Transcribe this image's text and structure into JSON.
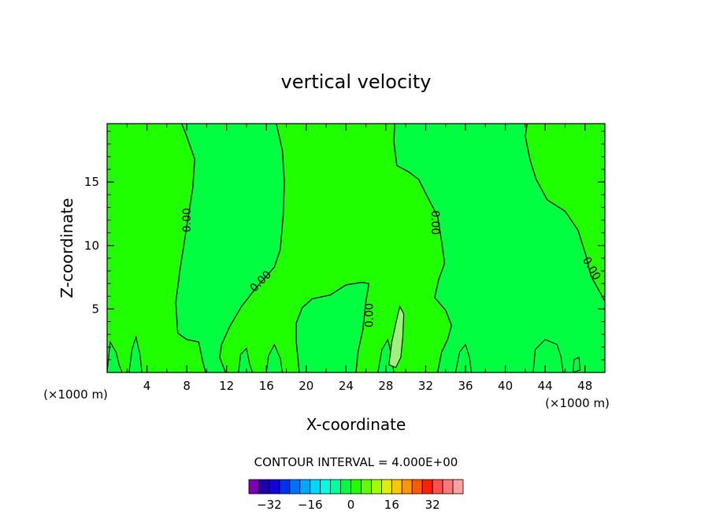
{
  "chart_data": {
    "type": "heatmap",
    "title": "vertical velocity",
    "xlabel": "X-coordinate",
    "ylabel": "Z-coordinate",
    "x_unit_left": "(×1000 m)",
    "x_unit_right": "(×1000 m)",
    "xlim": [
      0,
      50
    ],
    "ylim": [
      0,
      19.6
    ],
    "x_ticks": [
      4,
      8,
      12,
      16,
      20,
      24,
      28,
      32,
      36,
      40,
      44,
      48
    ],
    "y_ticks": [
      5,
      10,
      15
    ],
    "contour_interval_text": "CONTOUR INTERVAL = 4.000E+00",
    "contour_label": "0.00",
    "colorbar": {
      "ticks": [
        -32,
        -16,
        0,
        16,
        32
      ],
      "colors": [
        "#7a00b0",
        "#1e00a8",
        "#1400d8",
        "#0030f0",
        "#0070ff",
        "#00a8ff",
        "#00d8ff",
        "#00ffe0",
        "#00ffa0",
        "#00ff40",
        "#20ff00",
        "#60ff00",
        "#a0ff00",
        "#e0f000",
        "#ffc800",
        "#ff9600",
        "#ff5a00",
        "#ff2000",
        "#ff5050",
        "#ff7878",
        "#ffa0a0"
      ]
    },
    "regions": [
      {
        "level": "0 to 4",
        "color": "#20ff00"
      },
      {
        "level": "-4 to 0",
        "color": "#00ff40"
      },
      {
        "level": "4 to 8",
        "color": "#a0f080"
      }
    ],
    "zero_contours": [
      {
        "name": "contour-a",
        "points": [
          [
            7.5,
            19.6
          ],
          [
            8,
            18.6
          ],
          [
            8.8,
            16.8
          ],
          [
            8.6,
            14.5
          ],
          [
            8.2,
            12.5
          ],
          [
            7.8,
            10.5
          ],
          [
            7.3,
            8
          ],
          [
            6.9,
            5.5
          ],
          [
            7.1,
            3.1
          ],
          [
            8,
            2.6
          ],
          [
            9.2,
            2.4
          ],
          [
            9.6,
            0.9
          ],
          [
            9.9,
            0
          ]
        ]
      },
      {
        "name": "contour-b",
        "points": [
          [
            17,
            19.6
          ],
          [
            17.6,
            17.5
          ],
          [
            17.8,
            15
          ],
          [
            17.7,
            12.5
          ],
          [
            17.4,
            9.7
          ],
          [
            16.8,
            8.3
          ],
          [
            15,
            6.7
          ],
          [
            13.5,
            5.2
          ],
          [
            12.3,
            3.6
          ],
          [
            11.5,
            2.2
          ],
          [
            11.3,
            1.2
          ],
          [
            11.9,
            0
          ]
        ]
      },
      {
        "name": "contour-c",
        "points": [
          [
            28.9,
            19.6
          ],
          [
            28.8,
            18.2
          ],
          [
            29.1,
            16.3
          ],
          [
            30.3,
            15.8
          ],
          [
            31.3,
            15.2
          ],
          [
            32.2,
            13.8
          ],
          [
            33.2,
            12.3
          ],
          [
            33.6,
            10.3
          ],
          [
            33.9,
            8.6
          ],
          [
            33.3,
            7.3
          ],
          [
            32.9,
            5.9
          ],
          [
            34,
            4.9
          ],
          [
            34.6,
            3.7
          ],
          [
            34.2,
            2.6
          ],
          [
            33.6,
            1.6
          ],
          [
            33.2,
            0
          ]
        ]
      },
      {
        "name": "contour-d",
        "points": [
          [
            42.2,
            19.6
          ],
          [
            42,
            18.6
          ],
          [
            42.5,
            16.7
          ],
          [
            43.1,
            15.2
          ],
          [
            44.2,
            13.6
          ],
          [
            46,
            12.7
          ],
          [
            47.3,
            11.2
          ],
          [
            48.1,
            9.2
          ],
          [
            48.6,
            7.6
          ],
          [
            49.3,
            6.6
          ],
          [
            50,
            5.6
          ]
        ]
      },
      {
        "name": "contour-e",
        "points": [
          [
            19.3,
            0
          ],
          [
            19,
            2.4
          ],
          [
            19,
            3.9
          ],
          [
            19.6,
            5.1
          ],
          [
            20.6,
            5.8
          ],
          [
            22.4,
            6.1
          ],
          [
            24,
            6.9
          ],
          [
            25.6,
            7.1
          ],
          [
            26.3,
            7
          ],
          [
            26,
            5.6
          ],
          [
            25.7,
            3.4
          ],
          [
            25.2,
            1.6
          ],
          [
            25,
            0
          ]
        ]
      }
    ]
  }
}
